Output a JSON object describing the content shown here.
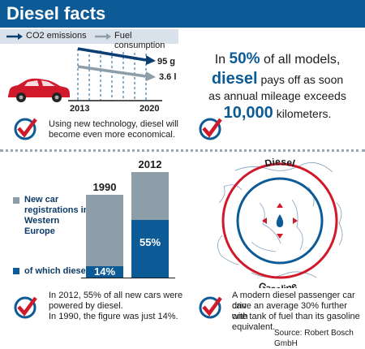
{
  "title": "Diesel facts",
  "colors": {
    "brand_blue": "#0d5b96",
    "dark_blue": "#0b3e72",
    "gray": "#8e9ea9",
    "light_gray_bg": "#d9e2ea",
    "red": "#d0192a"
  },
  "legend": {
    "co2": "CO2 emissions",
    "fuel": "Fuel consumption"
  },
  "trend": {
    "co2_end": "95 g",
    "fuel_end": "3.6 l",
    "years": [
      "2013",
      "2020"
    ]
  },
  "fact1": "Using new technology, diesel will become even more economical.",
  "fact2": {
    "pre": "In",
    "percent": "50%",
    "mid": "of all models,",
    "diesel": "diesel",
    "line2": "pays off as soon",
    "line3": "as annual mileage exceeds",
    "km": "10,000",
    "unit": "kilometers."
  },
  "bar_legend": {
    "total": "New car registrations in Western Europe",
    "diesel": "of which diesel"
  },
  "chart_data": {
    "type": "bar",
    "categories": [
      "1990",
      "2012"
    ],
    "series": [
      {
        "name": "New car registrations in Western Europe",
        "values": [
          100,
          100
        ]
      },
      {
        "name": "of which diesel",
        "values": [
          14,
          55
        ]
      }
    ],
    "labels": [
      "14%",
      "55%"
    ]
  },
  "fact3_lines": [
    "In 2012, 55% of all new cars were",
    "powered by diesel.",
    "In 1990, the figure was just 14%."
  ],
  "circle_labels": {
    "diesel": "Diesel",
    "gasoline": "Gasoline"
  },
  "fact4_lines": [
    "A modern diesel passenger car can",
    "drive an average 30% further with",
    "one tank of fuel than its gasoline",
    "equivalent."
  ],
  "source": "Source: Robert Bosch GmbH"
}
